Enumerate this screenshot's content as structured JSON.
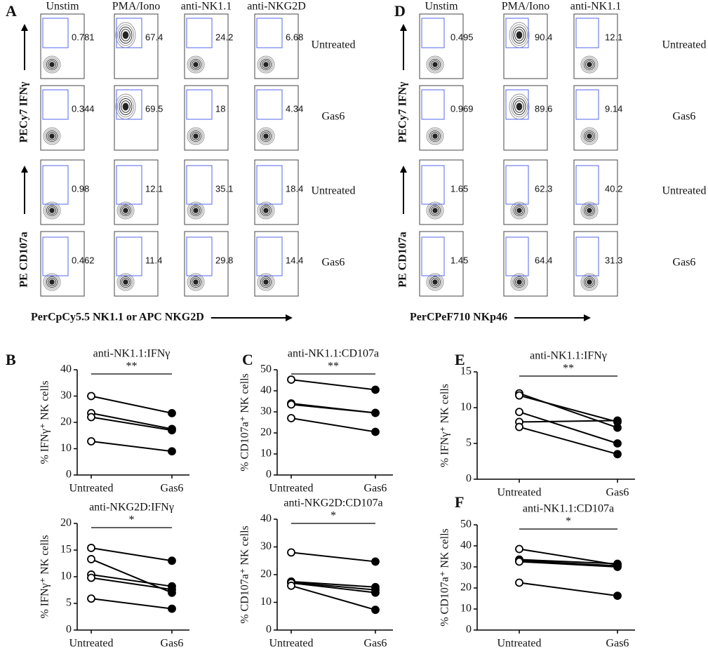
{
  "panel_letters": [
    "A",
    "B",
    "C",
    "D",
    "E",
    "F"
  ],
  "flow_panels": [
    {
      "columns": [
        "Unstim",
        "PMA/Iono",
        "anti-NK1.1",
        "anti-NKG2D"
      ],
      "rows": [
        "Untreated",
        "Gas6",
        "Untreated",
        "Gas6"
      ],
      "y_labels": [
        "PECy7 IFNγ",
        "PE CD107a"
      ],
      "x_label": "PerCpCy5.5 NK1.1 or APC NKG2D",
      "gates": [
        [
          "0.781",
          "67.4",
          "24.2",
          "6.68"
        ],
        [
          "0.344",
          "69.5",
          "18",
          "4.34"
        ],
        [
          "0.98",
          "12.1",
          "35.1",
          "18.4"
        ],
        [
          "0.462",
          "11.4",
          "29.8",
          "14.4"
        ]
      ]
    },
    {
      "columns": [
        "Unstim",
        "PMA/Iono",
        "anti-NK1.1"
      ],
      "rows": [
        "Untreated",
        "Gas6",
        "Untreated",
        "Gas6"
      ],
      "y_labels": [
        "PECy7 IFNγ",
        "PE CD107a"
      ],
      "x_label": "PerCPeF710 NKp46",
      "gates": [
        [
          "0.495",
          "90.4",
          "12.1"
        ],
        [
          "0.969",
          "89.6",
          "9.14"
        ],
        [
          "1.65",
          "62.3",
          "40.2"
        ],
        [
          "1.45",
          "64.4",
          "31.3"
        ]
      ]
    }
  ],
  "chart_data": [
    {
      "type": "line",
      "title": "anti-NK1.1:IFNγ",
      "y_label": "% IFNγ⁺ NK cells",
      "categories": [
        "Untreated",
        "Gas6"
      ],
      "significance": "**",
      "ylim": [
        0,
        40
      ],
      "yticks": [
        0,
        10,
        20,
        30,
        40
      ],
      "series": [
        {
          "values": [
            30,
            23.5
          ]
        },
        {
          "values": [
            23.5,
            17.5
          ]
        },
        {
          "values": [
            22,
            17
          ]
        },
        {
          "values": [
            12.8,
            9
          ]
        }
      ]
    },
    {
      "type": "line",
      "title": "anti-NKG2D:IFNγ",
      "y_label": "% IFNγ⁺ NK cells",
      "categories": [
        "Untreated",
        "Gas6"
      ],
      "significance": "*",
      "ylim": [
        0,
        20
      ],
      "yticks": [
        0,
        5,
        10,
        15,
        20
      ],
      "series": [
        {
          "values": [
            15.4,
            13
          ]
        },
        {
          "values": [
            13.3,
            7
          ]
        },
        {
          "values": [
            10.4,
            8.2
          ]
        },
        {
          "values": [
            9.8,
            7.6
          ]
        },
        {
          "values": [
            5.9,
            4
          ]
        }
      ]
    },
    {
      "type": "line",
      "title": "anti-NK1.1:CD107a",
      "y_label": "% CD107a⁺ NK cells",
      "categories": [
        "Untreated",
        "Gas6"
      ],
      "significance": "**",
      "ylim": [
        0,
        50
      ],
      "yticks": [
        0,
        10,
        20,
        30,
        40,
        50
      ],
      "series": [
        {
          "values": [
            45.3,
            40.5
          ]
        },
        {
          "values": [
            34,
            29.5
          ]
        },
        {
          "values": [
            33.5,
            29.5
          ]
        },
        {
          "values": [
            27,
            20.5
          ]
        }
      ]
    },
    {
      "type": "line",
      "title": "anti-NKG2D:CD107a",
      "y_label": "% CD107a⁺ NK cells",
      "categories": [
        "Untreated",
        "Gas6"
      ],
      "significance": "*",
      "ylim": [
        0,
        40
      ],
      "yticks": [
        0,
        10,
        20,
        30,
        40
      ],
      "series": [
        {
          "values": [
            28,
            24.7
          ]
        },
        {
          "values": [
            17.5,
            15.5
          ]
        },
        {
          "values": [
            17.2,
            14.5
          ]
        },
        {
          "values": [
            17,
            13.5
          ]
        },
        {
          "values": [
            16,
            7.3
          ]
        }
      ]
    },
    {
      "type": "line",
      "title": "anti-NK1.1:IFNγ",
      "y_label": "% IFNγ⁺ NK cells",
      "categories": [
        "Untreated",
        "Gas6"
      ],
      "significance": "**",
      "ylim": [
        0,
        15
      ],
      "yticks": [
        0,
        5,
        10,
        15
      ],
      "series": [
        {
          "values": [
            12,
            7.2
          ]
        },
        {
          "values": [
            11.7,
            8
          ]
        },
        {
          "values": [
            9.4,
            5
          ]
        },
        {
          "values": [
            8,
            8.2
          ]
        },
        {
          "values": [
            7.3,
            3.5
          ]
        }
      ]
    },
    {
      "type": "line",
      "title": "anti-NK1.1:CD107a",
      "y_label": "% CD107a⁺ NK cells",
      "categories": [
        "Untreated",
        "Gas6"
      ],
      "significance": "*",
      "ylim": [
        0,
        50
      ],
      "yticks": [
        0,
        10,
        20,
        30,
        40,
        50
      ],
      "series": [
        {
          "values": [
            38.5,
            31
          ]
        },
        {
          "values": [
            33.5,
            31.5
          ]
        },
        {
          "values": [
            33,
            30.5
          ]
        },
        {
          "values": [
            32.5,
            30
          ]
        },
        {
          "values": [
            22.5,
            16.3
          ]
        }
      ]
    }
  ]
}
